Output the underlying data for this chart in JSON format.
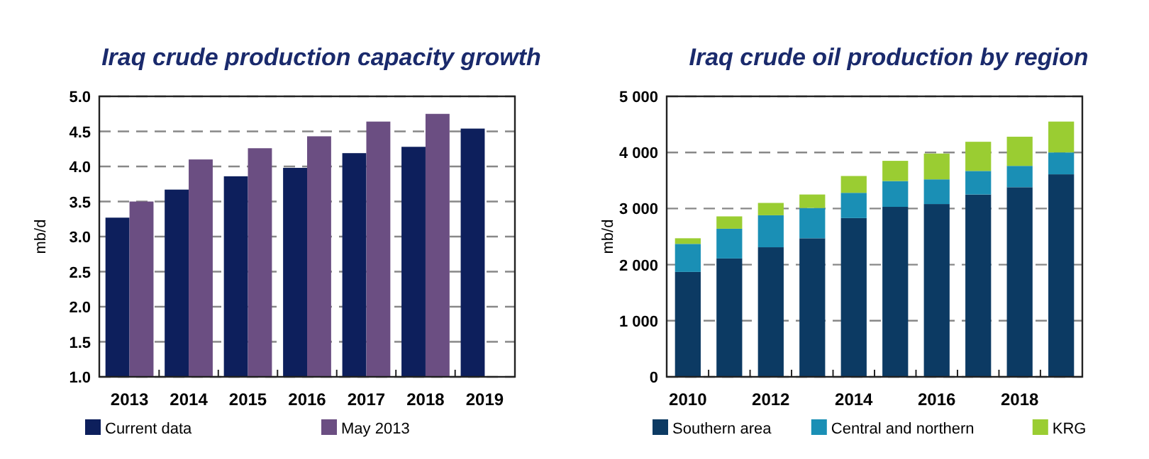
{
  "chart_data": [
    {
      "type": "bar",
      "title": "Iraq crude production capacity growth",
      "ylabel": "mb/d",
      "categories": [
        "2013",
        "2014",
        "2015",
        "2016",
        "2017",
        "2018",
        "2019"
      ],
      "series": [
        {
          "name": "Current data",
          "color": "#0d1f5c",
          "values": [
            3.27,
            3.67,
            3.86,
            3.98,
            4.19,
            4.28,
            4.54
          ]
        },
        {
          "name": "May 2013",
          "color": "#6b4e82",
          "values": [
            3.5,
            4.1,
            4.26,
            4.43,
            4.64,
            4.75,
            null
          ]
        }
      ],
      "ylim": [
        1,
        5
      ],
      "yticks": [
        {
          "value": 1,
          "label": "1.0"
        },
        1.5,
        {
          "value": 2,
          "label": "2.0"
        },
        2.5,
        {
          "value": 3,
          "label": "3.0"
        },
        3.5,
        {
          "value": 4,
          "label": "4.0"
        },
        4.5,
        {
          "value": 5,
          "label": "5.0"
        }
      ],
      "grid": "y",
      "legend": "bottom"
    },
    {
      "type": "bar",
      "title": "Iraq crude oil production by region",
      "ylabel": "mb/d",
      "stacked": true,
      "categories": [
        "2010",
        null,
        "2012",
        null,
        "2014",
        null,
        "2016",
        null,
        "2018",
        null
      ],
      "series": [
        {
          "name": "Southern area",
          "color": "#0c3a63",
          "values": [
            1870,
            2110,
            2310,
            2470,
            2830,
            3030,
            3080,
            3250,
            3380,
            3610
          ]
        },
        {
          "name": "Central and northern",
          "color": "#1a8fb5",
          "values": [
            500,
            530,
            570,
            540,
            450,
            460,
            440,
            420,
            380,
            390
          ]
        },
        {
          "name": "KRG",
          "color": "#9acd32",
          "values": [
            100,
            220,
            220,
            240,
            300,
            360,
            460,
            520,
            520,
            550
          ]
        }
      ],
      "ylim": [
        0,
        5000
      ],
      "yticks": [
        0,
        {
          "value": 1000,
          "label": "1 000"
        },
        {
          "value": 2000,
          "label": "2 000"
        },
        {
          "value": 3000,
          "label": "3 000"
        },
        {
          "value": 4000,
          "label": "4 000"
        },
        {
          "value": 5000,
          "label": "5 000"
        }
      ],
      "grid": "y",
      "legend": "bottom"
    }
  ]
}
